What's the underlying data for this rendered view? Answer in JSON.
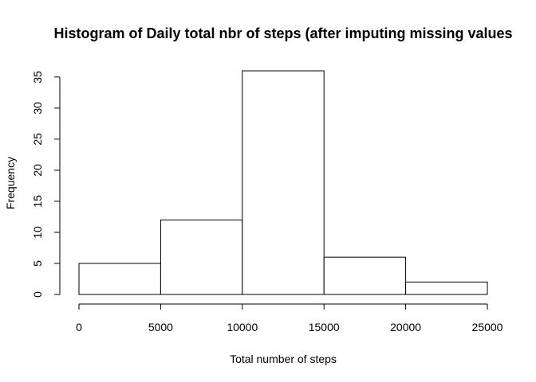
{
  "chart_data": {
    "type": "bar",
    "title": "Histogram of Daily total nbr of steps (after imputing missing values",
    "xlabel": "Total number of steps",
    "ylabel": "Frequency",
    "bins": [
      {
        "from": 0,
        "to": 5000,
        "count": 5
      },
      {
        "from": 5000,
        "to": 10000,
        "count": 12
      },
      {
        "from": 10000,
        "to": 15000,
        "count": 36
      },
      {
        "from": 15000,
        "to": 20000,
        "count": 6
      },
      {
        "from": 20000,
        "to": 25000,
        "count": 2
      }
    ],
    "x_ticks": [
      0,
      5000,
      10000,
      15000,
      20000,
      25000
    ],
    "y_ticks": [
      0,
      5,
      10,
      15,
      20,
      25,
      30,
      35
    ],
    "xlim": [
      0,
      25000
    ],
    "ylim": [
      0,
      36
    ],
    "bar_fill": "#ffffff",
    "bar_stroke": "#000000",
    "grid": false,
    "legend": "none"
  }
}
